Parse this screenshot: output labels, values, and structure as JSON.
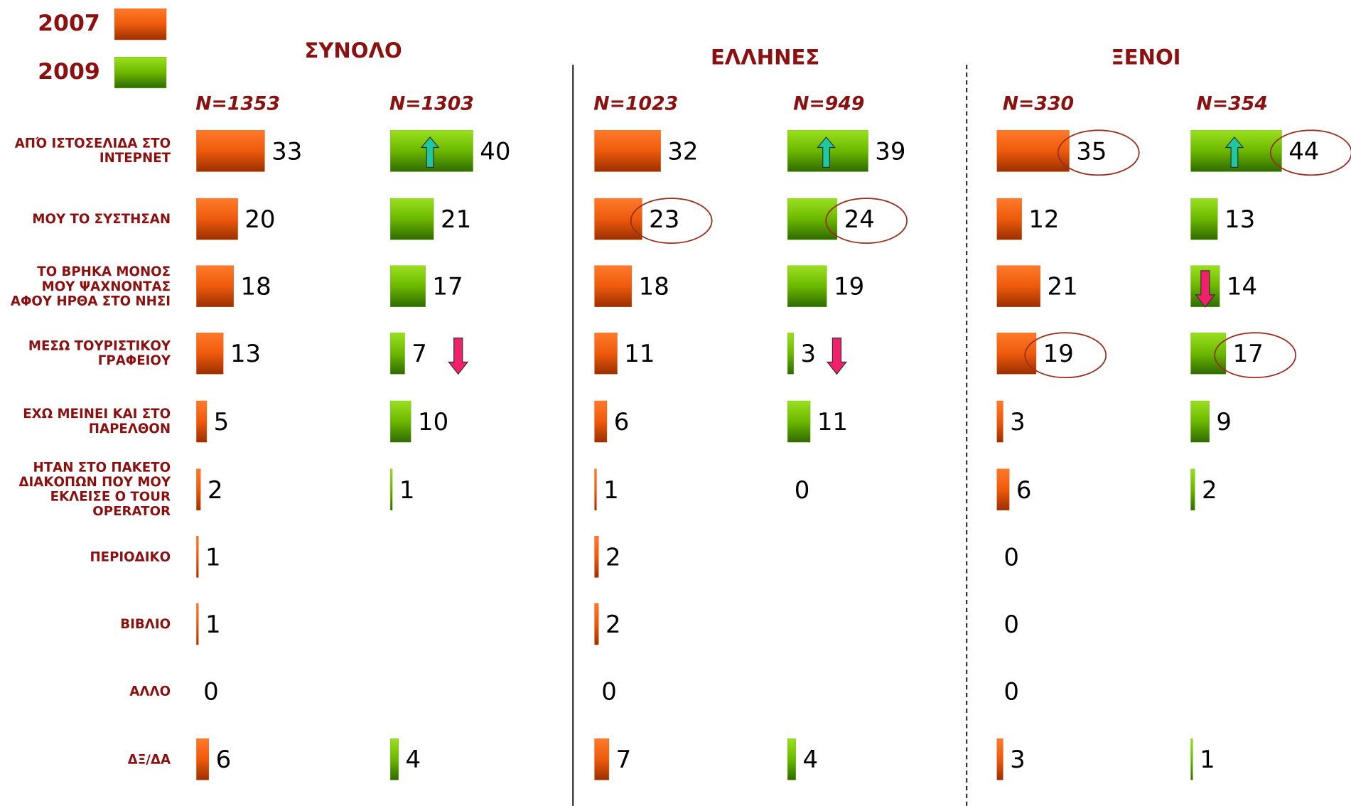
{
  "chart_data": {
    "type": "bar",
    "legend": [
      {
        "name": "2007",
        "color": "#e8560a"
      },
      {
        "name": "2009",
        "color": "#6cb800"
      }
    ],
    "categories": [
      "ΑΠΌ ΙΣΤΟΣΕΛΙΔΑ ΣΤΟ ΙΝΤΕΡΝΕΤ",
      "ΜΟΥ ΤΟ ΣΥΣΤΗΣΑΝ",
      "ΤΟ ΒΡΗΚΑ ΜΟΝΟΣ ΜΟΥ ΨΑΧΝΟΝΤΑΣ ΑΦΟΥ ΗΡΘΑ ΣΤΟ ΝΗΣΙ",
      "ΜΕΣΩ ΤΟΥΡΙΣΤΙΚΟΥ ΓΡΑΦΕΙΟΥ",
      "ΕΧΩ ΜΕΙΝΕΙ ΚΑΙ ΣΤΟ ΠΑΡΕΛΘΟΝ",
      "ΗΤΑΝ ΣΤΟ ΠΑΚΕΤΟ ΔΙΑΚΟΠΩΝ ΠΟΥ ΜΟΥ ΕΚΛΕΙΣΕ Ο TOUR OPERATOR",
      "ΠΕΡΙΟΔΙΚΟ",
      "ΒΙΒΛΙΟ",
      "ΑΛΛΟ",
      "ΔΞ/ΔΑ"
    ],
    "groups": [
      {
        "title": "ΣΥΝΟΛΟ",
        "series": [
          {
            "name": "N=1353",
            "color": "#e8560a",
            "values": [
              33,
              20,
              18,
              13,
              5,
              2,
              1,
              1,
              0,
              6
            ]
          },
          {
            "name": "N=1303",
            "color": "#6cb800",
            "values": [
              40,
              21,
              17,
              7,
              10,
              1,
              null,
              null,
              null,
              4
            ]
          }
        ]
      },
      {
        "title": "ΕΛΛΗΝΕΣ",
        "series": [
          {
            "name": "N=1023",
            "color": "#e8560a",
            "values": [
              32,
              23,
              18,
              11,
              6,
              1,
              2,
              2,
              0,
              7
            ]
          },
          {
            "name": "N=949",
            "color": "#6cb800",
            "values": [
              39,
              24,
              19,
              3,
              11,
              0,
              null,
              null,
              null,
              4
            ]
          }
        ]
      },
      {
        "title": "ΞΕΝΟΙ",
        "series": [
          {
            "name": "N=330",
            "color": "#e8560a",
            "values": [
              35,
              12,
              21,
              19,
              3,
              6,
              0,
              0,
              0,
              3
            ]
          },
          {
            "name": "N=354",
            "color": "#6cb800",
            "values": [
              44,
              13,
              14,
              17,
              9,
              2,
              null,
              null,
              null,
              1
            ]
          }
        ]
      }
    ]
  }
}
